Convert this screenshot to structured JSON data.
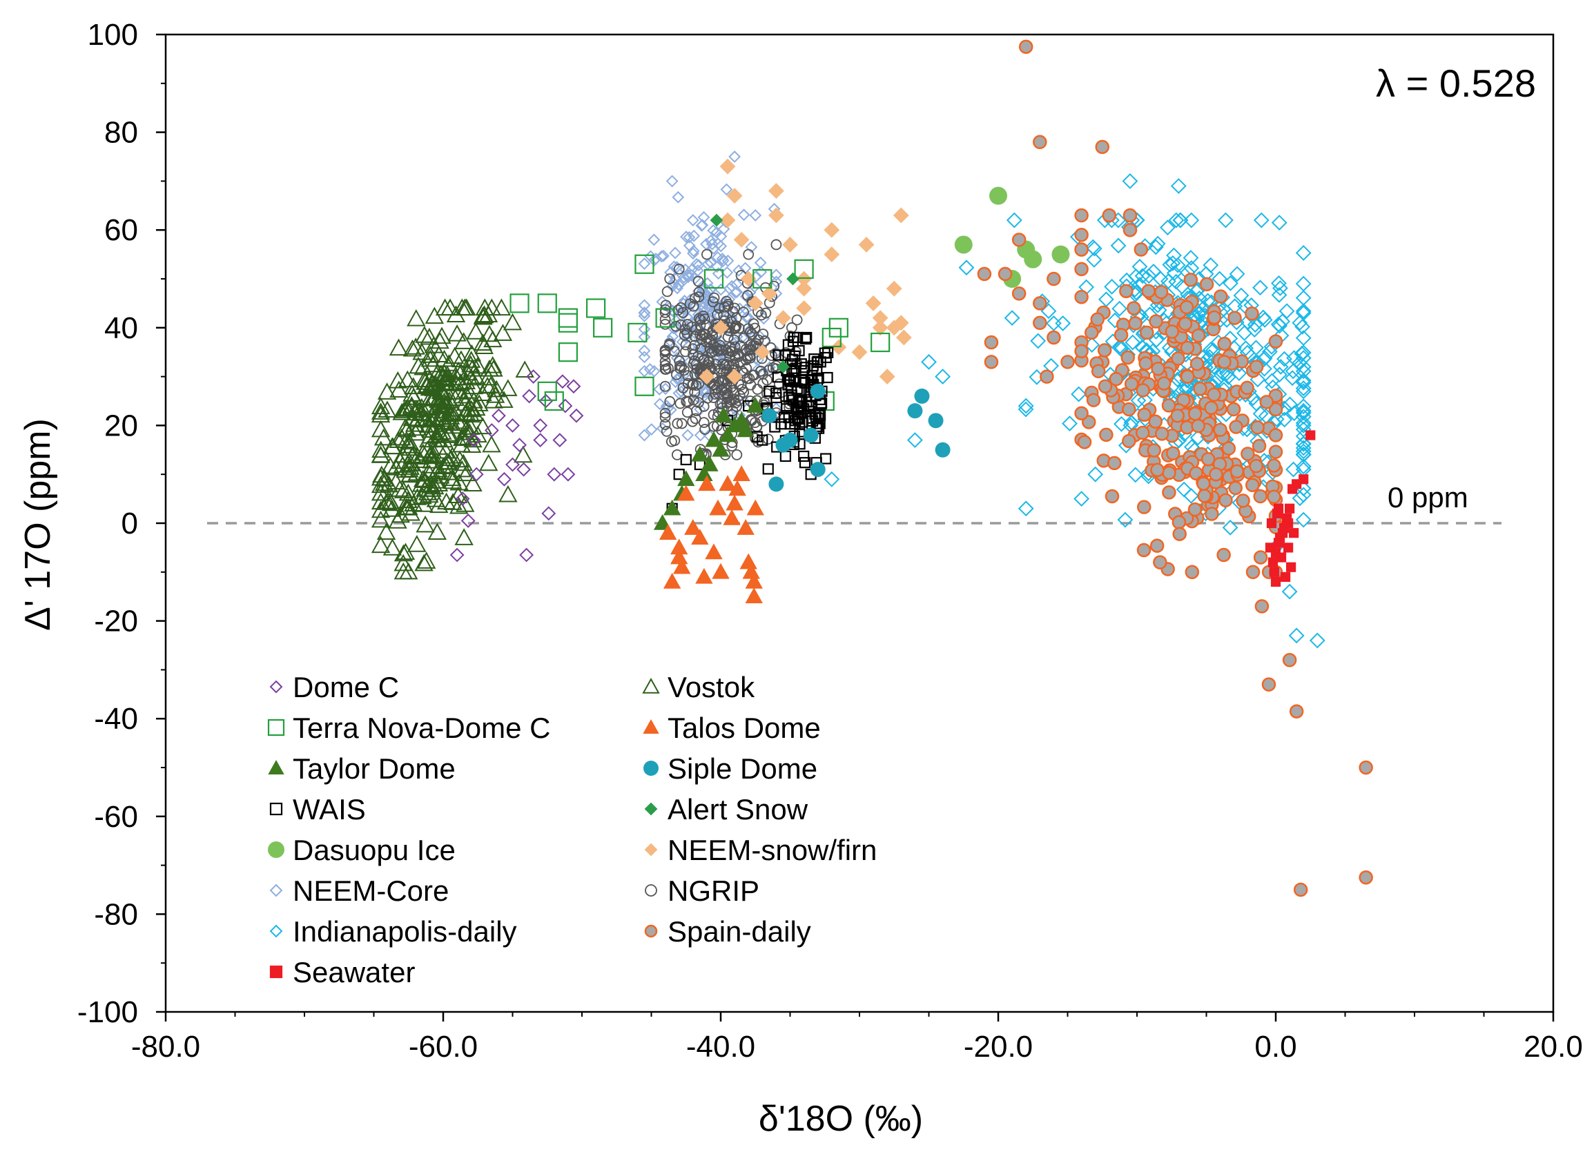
{
  "chart_data": {
    "type": "scatter",
    "title": "",
    "xlabel": "δ'18O (‰)",
    "ylabel": "Δ' 17O (ppm)",
    "xlim": [
      -80,
      20
    ],
    "ylim": [
      -100,
      100
    ],
    "xticks": [
      "-80.0",
      "-60.0",
      "-40.0",
      "-20.0",
      "0.0",
      "20.0"
    ],
    "yticks": [
      "100",
      "80",
      "60",
      "40",
      "20",
      "0",
      "-20",
      "-40",
      "-60",
      "-80",
      "-100"
    ],
    "annotations": {
      "lambda": "λ = 0.528",
      "zero_line": "0 ppm"
    },
    "legend_position": "lower-left",
    "series": [
      {
        "name": "Dome C",
        "marker": "diamond-open",
        "color": "#7b3fa0",
        "points": [
          [
            -58.6,
            5
          ],
          [
            -58.2,
            0.5
          ],
          [
            -57.6,
            10
          ],
          [
            -57.8,
            17
          ],
          [
            -56.5,
            19
          ],
          [
            -56,
            22
          ],
          [
            -55.6,
            9
          ],
          [
            -55,
            12
          ],
          [
            -54.5,
            16
          ],
          [
            -54.2,
            11
          ],
          [
            -53.8,
            26
          ],
          [
            -53.5,
            30
          ],
          [
            -53,
            20
          ],
          [
            -52.6,
            25
          ],
          [
            -52.4,
            2
          ],
          [
            -52,
            10
          ],
          [
            -51.6,
            17
          ],
          [
            -51.4,
            29
          ],
          [
            -51.2,
            24
          ],
          [
            -51,
            10
          ],
          [
            -50.6,
            28
          ],
          [
            -50.4,
            22
          ],
          [
            -54,
            -6.5
          ],
          [
            -59,
            -6.5
          ],
          [
            -55,
            20
          ],
          [
            -53,
            17
          ]
        ]
      },
      {
        "name": "Vostok",
        "marker": "triangle-open",
        "color": "#2e5e1a",
        "points": []
      },
      {
        "name": "Terra Nova-Dome C",
        "marker": "square-open",
        "color": "#22a03c",
        "points": [
          [
            -54.5,
            45
          ],
          [
            -52.5,
            45
          ],
          [
            -51,
            42
          ],
          [
            -51,
            41
          ],
          [
            -49,
            44
          ],
          [
            -48.5,
            40
          ],
          [
            -51,
            35
          ],
          [
            -46,
            39
          ],
          [
            -45.5,
            53
          ],
          [
            -45.5,
            28
          ],
          [
            -44,
            42
          ],
          [
            -40.5,
            50
          ],
          [
            -37,
            50
          ],
          [
            -34,
            52
          ],
          [
            -32,
            38
          ],
          [
            -31.5,
            40
          ],
          [
            -32.5,
            25
          ],
          [
            -28.5,
            37
          ],
          [
            -52.5,
            27
          ],
          [
            -52,
            25
          ]
        ]
      },
      {
        "name": "Talos Dome",
        "marker": "triangle-filled",
        "color": "#f26522",
        "points": [
          [
            -43.8,
            -2
          ],
          [
            -43.5,
            -12
          ],
          [
            -43,
            -5
          ],
          [
            -42.8,
            -9
          ],
          [
            -42.5,
            6
          ],
          [
            -42,
            -1
          ],
          [
            -41.5,
            -3
          ],
          [
            -41.2,
            -11
          ],
          [
            -40.5,
            -6
          ],
          [
            -40,
            -10
          ],
          [
            -39.5,
            8
          ],
          [
            -39.2,
            1
          ],
          [
            -39,
            4
          ],
          [
            -38.5,
            10
          ],
          [
            -38,
            -8
          ],
          [
            -37.8,
            -10
          ],
          [
            -37.6,
            -15
          ],
          [
            -37.5,
            3
          ],
          [
            -37.6,
            -12
          ],
          [
            -38.2,
            -1
          ],
          [
            -40.2,
            3
          ],
          [
            -41,
            8
          ],
          [
            -43,
            -7
          ],
          [
            -38.8,
            7
          ]
        ]
      },
      {
        "name": "Taylor Dome",
        "marker": "triangle-filled",
        "color": "#3f7a1f",
        "points": [
          [
            -44.2,
            0
          ],
          [
            -43.5,
            3
          ],
          [
            -42.8,
            6
          ],
          [
            -42.5,
            9
          ],
          [
            -41.5,
            14
          ],
          [
            -40.5,
            17
          ],
          [
            -40,
            15
          ],
          [
            -39.5,
            18
          ],
          [
            -39,
            20
          ],
          [
            -38.5,
            21
          ],
          [
            -38.2,
            19
          ],
          [
            -37.5,
            24
          ],
          [
            -40.8,
            12
          ],
          [
            -41.2,
            10
          ],
          [
            -39.8,
            22
          ]
        ]
      },
      {
        "name": "Siple Dome",
        "marker": "circle-filled",
        "color": "#1ea0b8",
        "points": [
          [
            -36.5,
            22
          ],
          [
            -36,
            8
          ],
          [
            -35.5,
            16
          ],
          [
            -35,
            17
          ],
          [
            -33.5,
            18
          ],
          [
            -33,
            11
          ],
          [
            -26,
            23
          ],
          [
            -25.5,
            26
          ],
          [
            -24.5,
            21
          ],
          [
            -24,
            15
          ],
          [
            -33,
            27
          ]
        ]
      },
      {
        "name": "WAIS",
        "marker": "square-open",
        "color": "#000000",
        "points": []
      },
      {
        "name": "Alert Snow",
        "marker": "diamond-filled",
        "color": "#2a9d4a",
        "points": [
          [
            -40.3,
            62
          ],
          [
            -35.5,
            32
          ],
          [
            -34.8,
            50
          ]
        ]
      },
      {
        "name": "Dasuopu Ice",
        "marker": "circle-filled",
        "color": "#7dc35a",
        "points": [
          [
            -22.5,
            57
          ],
          [
            -20,
            67
          ],
          [
            -19,
            50
          ],
          [
            -18,
            56
          ],
          [
            -17.5,
            54
          ],
          [
            -15.5,
            55
          ]
        ]
      },
      {
        "name": "NEEM-snow/firn",
        "marker": "diamond-filled",
        "color": "#f5b880",
        "points": [
          [
            -39.5,
            73
          ],
          [
            -39,
            67
          ],
          [
            -39.5,
            62
          ],
          [
            -38.5,
            58
          ],
          [
            -36,
            68
          ],
          [
            -36,
            63
          ],
          [
            -35,
            57
          ],
          [
            -34,
            50
          ],
          [
            -34,
            48
          ],
          [
            -32,
            60
          ],
          [
            -32,
            55
          ],
          [
            -31.5,
            36
          ],
          [
            -29.5,
            57
          ],
          [
            -29,
            45
          ],
          [
            -28.5,
            40
          ],
          [
            -28,
            30
          ],
          [
            -27,
            63
          ],
          [
            -27.5,
            48
          ],
          [
            -27,
            41
          ],
          [
            -26.8,
            38
          ],
          [
            -38,
            50
          ],
          [
            -37.5,
            45
          ],
          [
            -36.5,
            47
          ],
          [
            -40,
            40
          ],
          [
            -41,
            30
          ],
          [
            -39,
            30
          ],
          [
            -37,
            35
          ],
          [
            -35.5,
            42
          ],
          [
            -34,
            44
          ],
          [
            -30,
            35
          ],
          [
            -28.5,
            42
          ],
          [
            -27.5,
            40
          ]
        ]
      },
      {
        "name": "NEEM-Core",
        "marker": "diamond-open",
        "color": "#8eafe0",
        "points": []
      },
      {
        "name": "NGRIP",
        "marker": "circle-open",
        "color": "#555555",
        "points": []
      },
      {
        "name": "Indianapolis-daily",
        "marker": "diamond-open",
        "color": "#1bb8e8",
        "points": []
      },
      {
        "name": "Spain-daily",
        "marker": "circle-filled-outlined",
        "color": "#a8a8a8",
        "stroke": "#f26522",
        "points": [
          [
            -18,
            97.5
          ],
          [
            -17,
            78
          ],
          [
            -12.5,
            77
          ],
          [
            -18.5,
            58
          ],
          [
            -19.5,
            51
          ],
          [
            -21,
            51
          ],
          [
            -18.5,
            47
          ],
          [
            -17,
            45
          ],
          [
            -16,
            50
          ],
          [
            -14,
            52
          ],
          [
            -20.5,
            37
          ],
          [
            -20.5,
            33
          ],
          [
            -17,
            41
          ],
          [
            -16.5,
            30
          ],
          [
            -15,
            33
          ],
          [
            -16,
            38
          ],
          [
            -14,
            63
          ],
          [
            -14,
            59
          ],
          [
            -12,
            63
          ],
          [
            -10.5,
            63
          ],
          [
            -10.5,
            60
          ],
          [
            -9,
            47
          ],
          [
            -9.5,
            -5.5
          ],
          [
            -1,
            -17
          ],
          [
            -0.5,
            -33
          ],
          [
            1,
            -28
          ],
          [
            1.5,
            -38.5
          ],
          [
            6.5,
            -50
          ],
          [
            6.5,
            -72.5
          ],
          [
            1.8,
            -75
          ]
        ]
      },
      {
        "name": "Seawater",
        "marker": "square-filled",
        "color": "#ee1c25",
        "points": [
          [
            2.5,
            18
          ],
          [
            2,
            9
          ],
          [
            1.5,
            8
          ],
          [
            1.2,
            7
          ],
          [
            1,
            3
          ],
          [
            0.8,
            1
          ],
          [
            0.5,
            -2
          ],
          [
            0.2,
            -4
          ],
          [
            0,
            -6
          ],
          [
            -0.2,
            -8
          ],
          [
            -0.1,
            -10
          ],
          [
            0,
            -12
          ],
          [
            0.3,
            -3
          ],
          [
            0.6,
            -1
          ],
          [
            0.9,
            -5
          ],
          [
            1.1,
            -9
          ],
          [
            -0.3,
            0
          ],
          [
            0.1,
            2
          ],
          [
            0.4,
            -7
          ],
          [
            0.7,
            -11
          ],
          [
            -0.4,
            -5
          ],
          [
            0.2,
            3
          ],
          [
            0.9,
            0
          ],
          [
            1.3,
            -2
          ]
        ]
      }
    ]
  }
}
